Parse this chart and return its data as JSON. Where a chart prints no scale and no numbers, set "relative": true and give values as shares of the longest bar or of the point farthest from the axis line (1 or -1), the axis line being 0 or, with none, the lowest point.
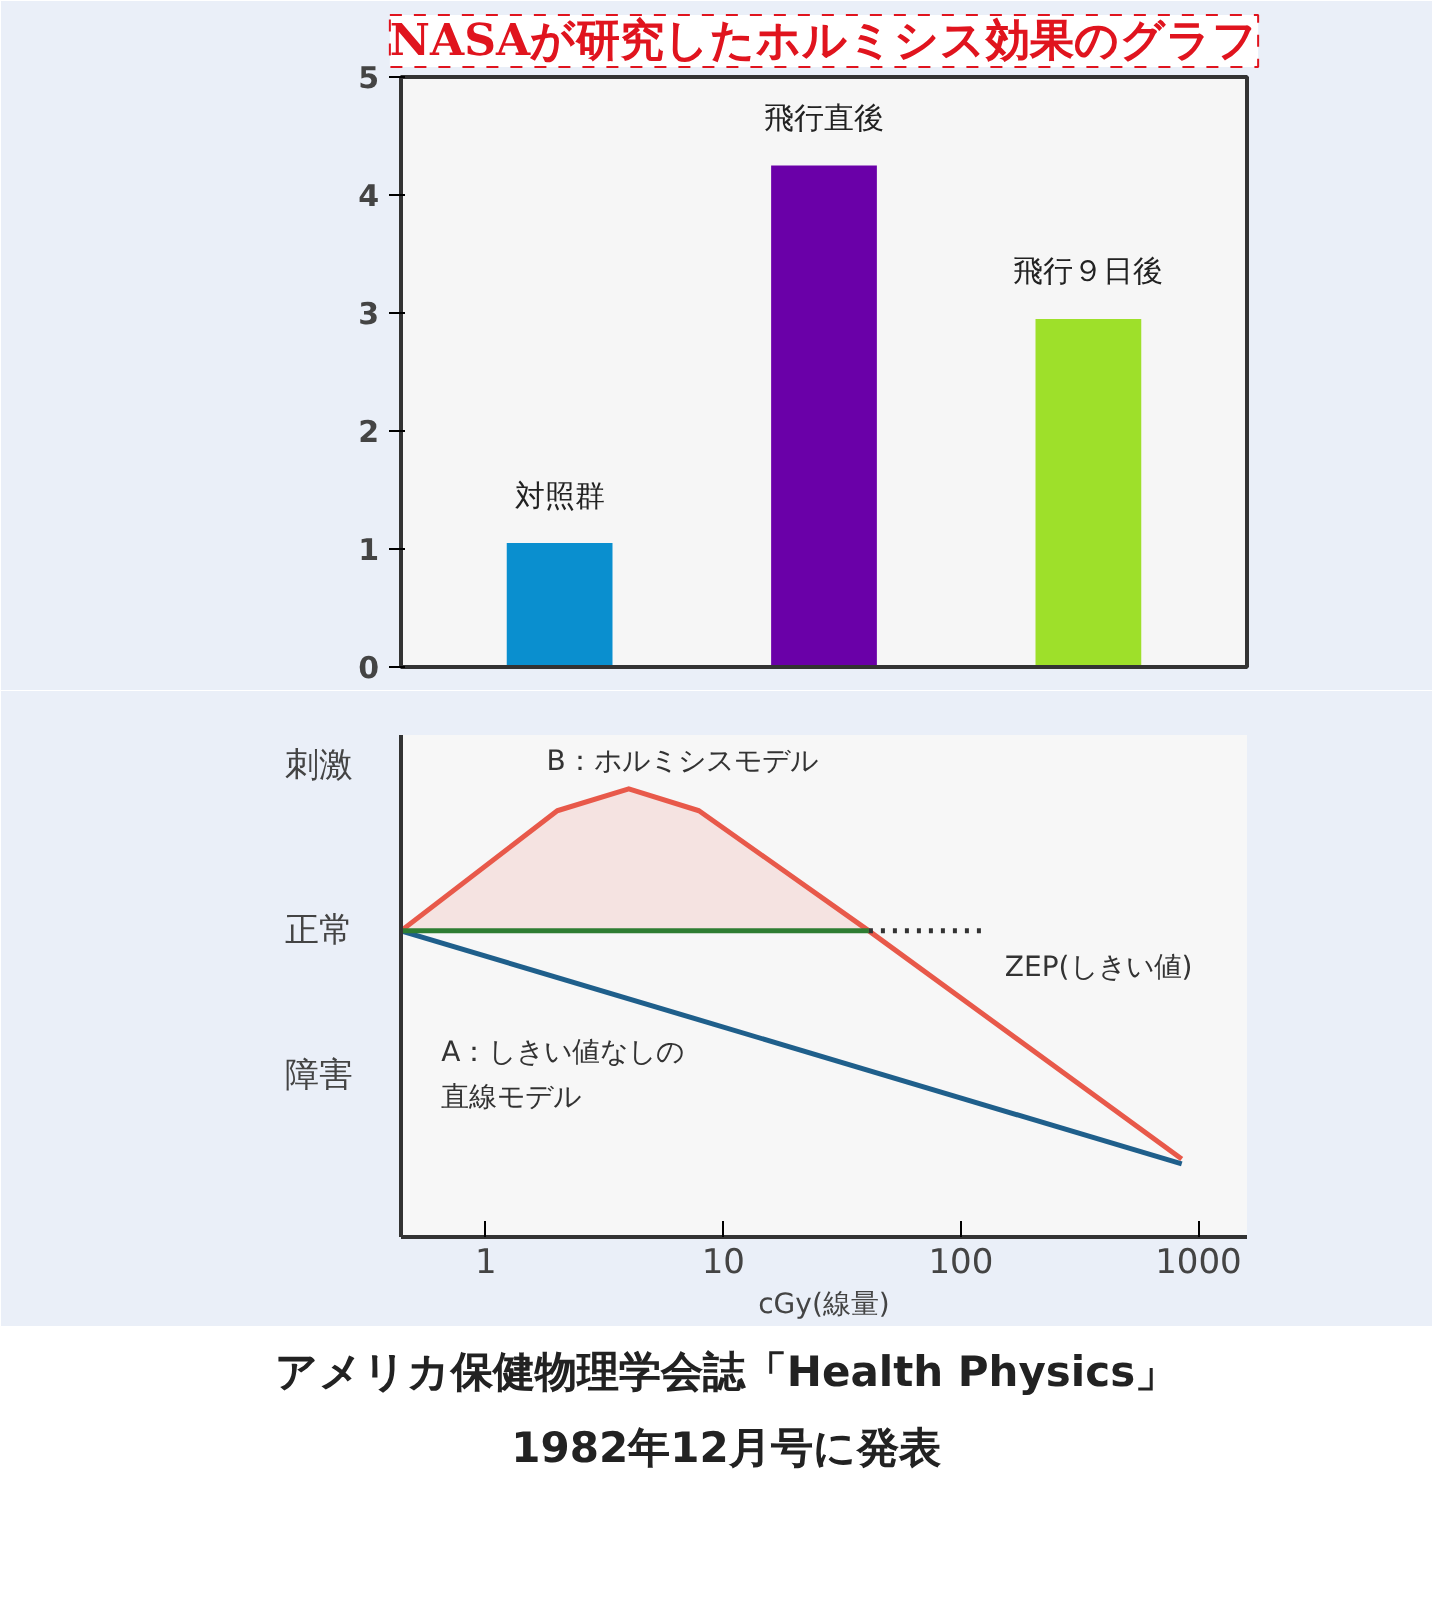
{
  "chart_data": [
    {
      "type": "bar",
      "title": "NASAが研究したホルミシス効果のグラフ",
      "categories": [
        "対照群",
        "飛行直後",
        "飛行９日後"
      ],
      "values": [
        1.05,
        4.25,
        2.95
      ],
      "colors": [
        "#0a8fcf",
        "#6a00a8",
        "#9ee02a"
      ],
      "ylim": [
        0,
        5
      ],
      "yticks": [
        0,
        1,
        2,
        3,
        4,
        5
      ],
      "grid": false
    },
    {
      "type": "line",
      "relative": true,
      "xlabel": "cGy(線量)",
      "log": "x",
      "xlim": [
        0.44,
        1600
      ],
      "xticks": [
        1,
        10,
        100,
        1000
      ],
      "grid": false,
      "series": [
        {
          "color": "#e8594a",
          "x": [
            0.44,
            2,
            4,
            7.9,
            41,
            850
          ],
          "values": [
            0.683,
            0.951,
            1,
            0.951,
            0.683,
            0.174
          ],
          "lower": [
            0.683,
            0.683,
            0.683,
            0.683,
            0.683,
            null
          ],
          "upper": [
            0.683,
            0.951,
            1,
            0.951,
            0.683,
            null
          ]
        },
        {
          "color": "#1f5f8b",
          "x": [
            0.44,
            850
          ],
          "values": [
            0.683,
            0.163
          ]
        },
        {
          "color": "#2e7d32",
          "x": [
            0.44,
            41
          ],
          "values": [
            0.683,
            0.683
          ]
        },
        {
          "color": "#333333",
          "line_style": "dotted",
          "x": [
            41,
            127
          ],
          "values": [
            0.683,
            0.683
          ]
        }
      ],
      "annotations": [
        "刺激",
        "正常",
        "障害",
        "B：ホルミシスモデル",
        "A：しきい値なしの直線モデル",
        "ZEP(しきい値)",
        "アメリカ保健物理学会誌「Health Physics」\n1982年12月号に発表"
      ]
    }
  ]
}
